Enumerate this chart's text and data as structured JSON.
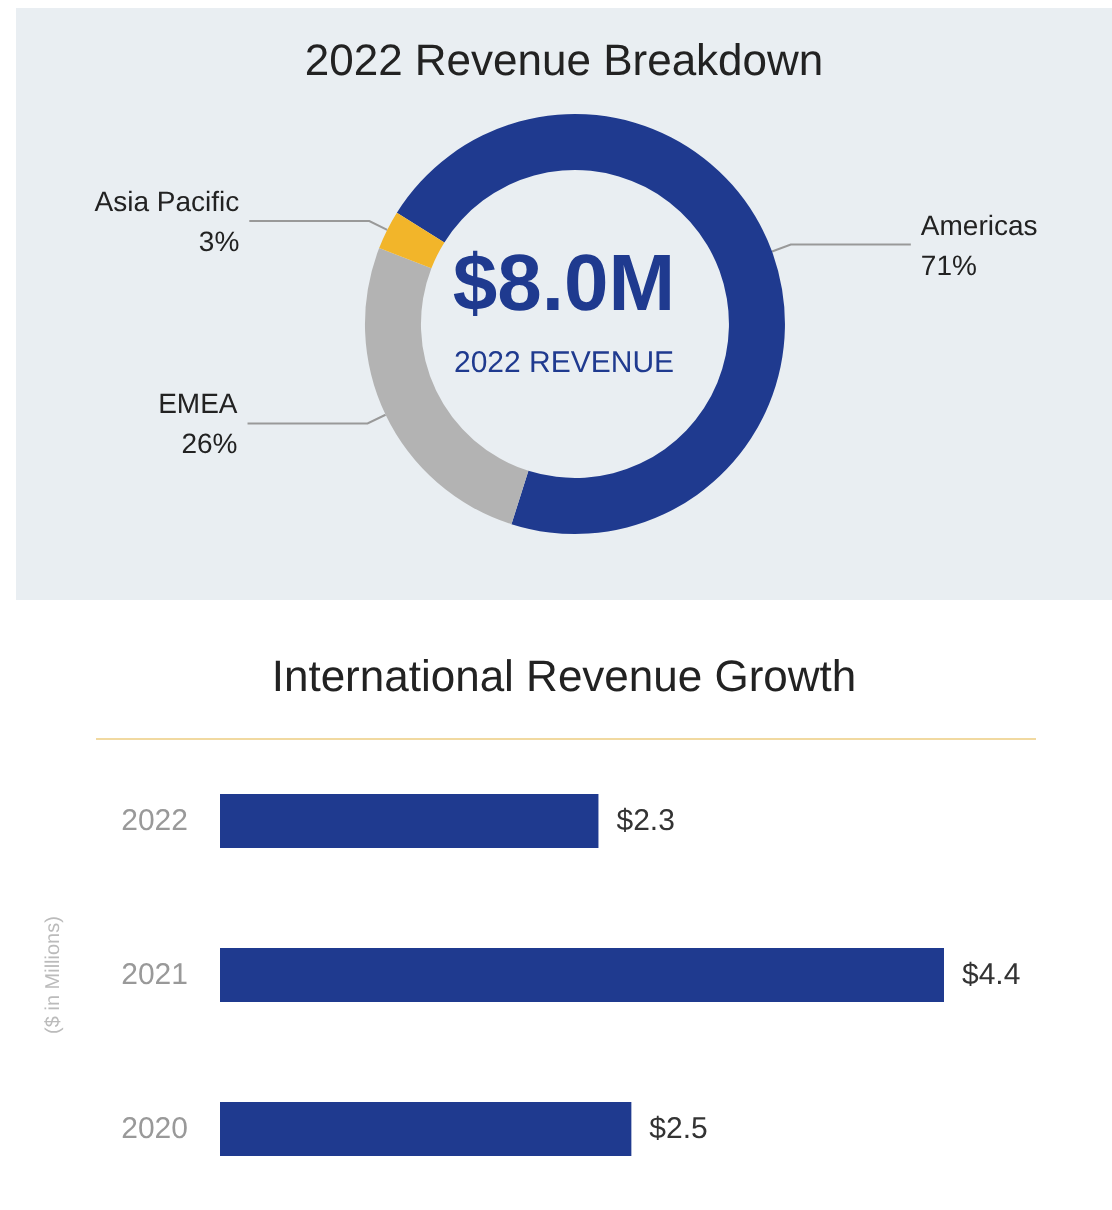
{
  "chart_data": [
    {
      "type": "donut",
      "title": "2022 Revenue Breakdown",
      "categories": [
        "Americas",
        "EMEA",
        "Asia Pacific"
      ],
      "values": [
        71,
        26,
        3
      ],
      "colors": [
        "#1f3a8f",
        "#b3b3b3",
        "#f2b52a"
      ],
      "value_labels": [
        "71%",
        "26%",
        "3%"
      ],
      "annotations": [
        "$8.0M",
        "2022 REVENUE"
      ],
      "legend": false
    },
    {
      "type": "bar",
      "orientation": "horizontal",
      "title": "International Revenue Growth",
      "ylabel": "($ in Millions)",
      "categories": [
        "2022",
        "2021",
        "2020"
      ],
      "values": [
        2.3,
        4.4,
        2.5
      ],
      "color": "#1f3a8f",
      "value_labels": [
        "$2.3",
        "$4.4",
        "$2.5"
      ],
      "legend": false,
      "grid": false
    }
  ]
}
